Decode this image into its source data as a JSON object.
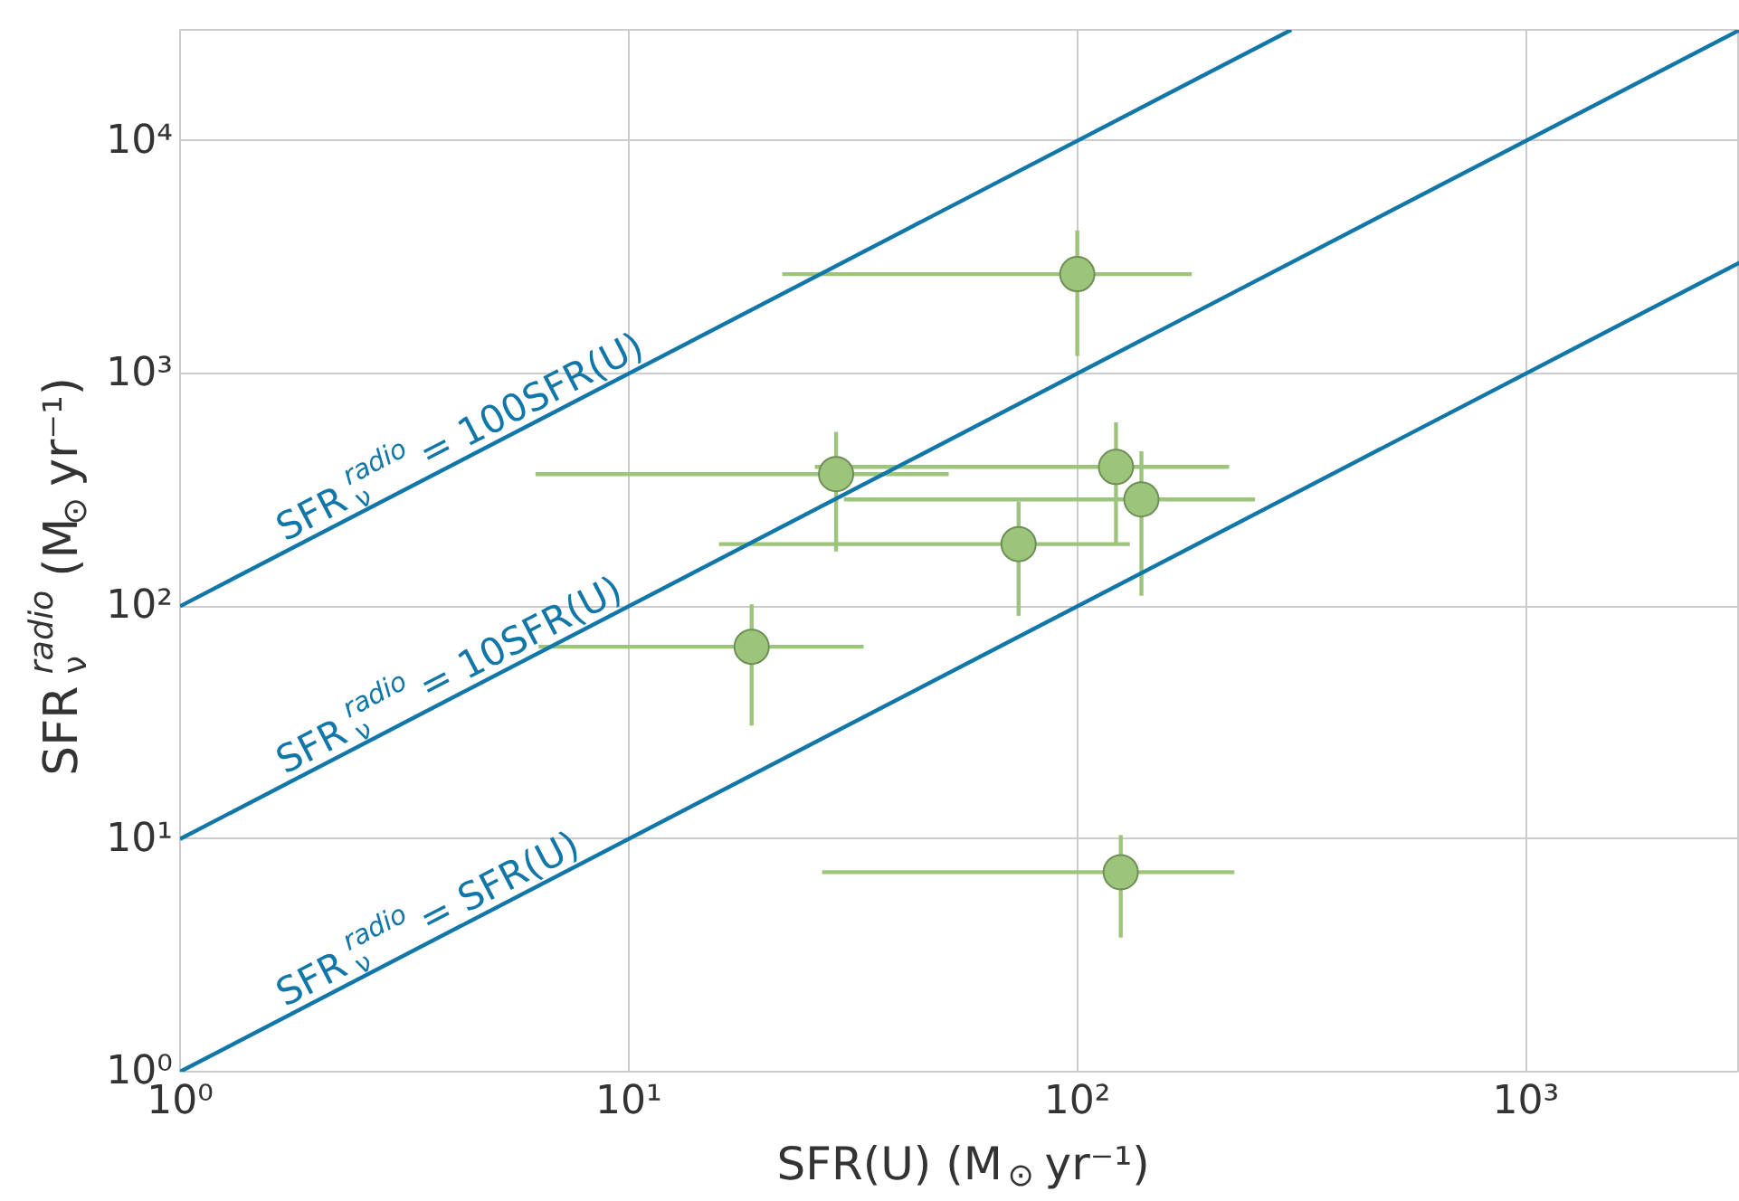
{
  "chart_data": {
    "type": "scatter",
    "xlabel": "SFR(U) (M$_{⊙}$ yr⁻¹)",
    "ylabel": "SFR$_{ν}$$^{radio}$ (M$_{⊙}$ yr⁻¹)",
    "log": "xy",
    "grid": true,
    "marker": "circle",
    "xlim": [
      1,
      3000
    ],
    "ylim": [
      1,
      30000
    ],
    "xticks": [
      {
        "value": 1,
        "label": "10⁰"
      },
      {
        "value": 10,
        "label": "10¹"
      },
      {
        "value": 100,
        "label": "10²"
      },
      {
        "value": 1000,
        "label": "10³"
      }
    ],
    "yticks": [
      {
        "value": 1,
        "label": "10⁰"
      },
      {
        "value": 10,
        "label": "10¹"
      },
      {
        "value": 100,
        "label": "10²"
      },
      {
        "value": 1000,
        "label": "10³"
      },
      {
        "value": 10000,
        "label": "10⁴"
      }
    ],
    "series": [
      {
        "color": "#9cc47a",
        "x": [
          100,
          29,
          122,
          139,
          74,
          18.8,
          125
        ],
        "values": [
          2675,
          370,
          397,
          288,
          185,
          67,
          7.2
        ],
        "errors": [
          [
            1190,
            4120
          ],
          [
            172,
            562
          ],
          [
            185,
            617
          ],
          [
            111,
            464
          ],
          [
            91,
            282
          ],
          [
            30.7,
            102
          ],
          [
            3.77,
            10.4
          ]
        ],
        "xerrors": [
          [
            22,
            180
          ],
          [
            6.2,
            51.7
          ],
          [
            26,
            218
          ],
          [
            30.2,
            249
          ],
          [
            15.9,
            131
          ],
          [
            6.3,
            33.4
          ],
          [
            27,
            224
          ]
        ]
      },
      {
        "type": "line",
        "marker": "none",
        "name": "SFR$_{ν}$$^{radio}$ = 100SFR(U)",
        "color": "#1177a8",
        "x": [
          1,
          300
        ],
        "values": [
          100,
          30000
        ]
      },
      {
        "type": "line",
        "marker": "none",
        "name": "SFR$_{ν}$$^{radio}$ = 10SFR(U)",
        "color": "#1177a8",
        "x": [
          1,
          3000
        ],
        "values": [
          10,
          30000
        ]
      },
      {
        "type": "line",
        "marker": "none",
        "name": "SFR$_{ν}$$^{radio}$ = SFR(U)",
        "color": "#1177a8",
        "x": [
          1,
          3000
        ],
        "values": [
          1,
          3000
        ]
      }
    ]
  }
}
